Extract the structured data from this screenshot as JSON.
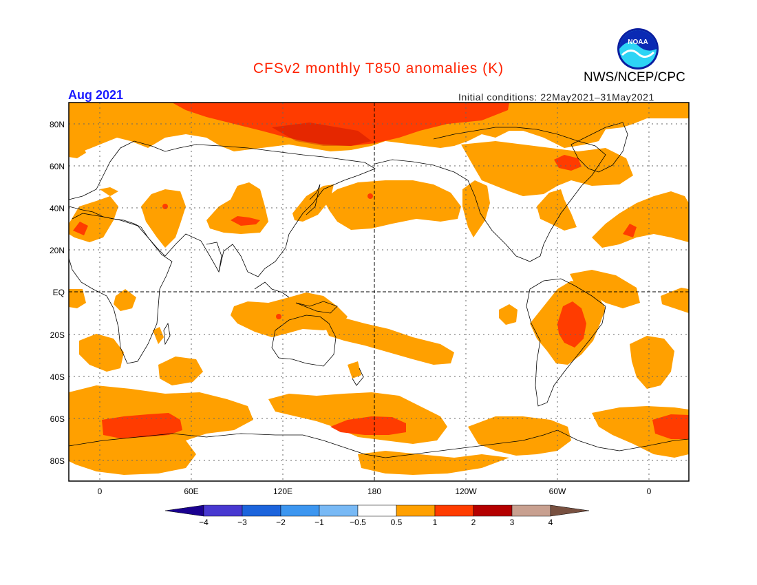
{
  "title": "CFSv2 monthly T850 anomalies (K)",
  "org": "NWS/NCEP/CPC",
  "logo_text": "NOAA",
  "month": "Aug 2021",
  "initial_conditions": "Initial conditions: 22May2021–31May2021",
  "colors": {
    "title": "#ff2200",
    "month": "#1a1aff",
    "land": "#ffffff",
    "anom_05_1": "#ffa000",
    "anom_1_2": "#ff3c00",
    "anom_2_3": "#b40000"
  },
  "lat_labels": [
    "80N",
    "60N",
    "40N",
    "20N",
    "EQ",
    "20S",
    "40S",
    "60S",
    "80S"
  ],
  "lon_labels": [
    "0",
    "60E",
    "120E",
    "180",
    "120W",
    "60W",
    "0"
  ],
  "colorbar": {
    "colors": [
      "#1a0090",
      "#4838d0",
      "#1c64dc",
      "#3c96f0",
      "#78b9f5",
      "#ffffff",
      "#ffa000",
      "#ff3c00",
      "#b40000",
      "#c8a090",
      "#785040"
    ],
    "labels": [
      "−4",
      "−3",
      "−2",
      "−1",
      "−0.5",
      "0.5",
      "1",
      "2",
      "3",
      "4"
    ]
  }
}
